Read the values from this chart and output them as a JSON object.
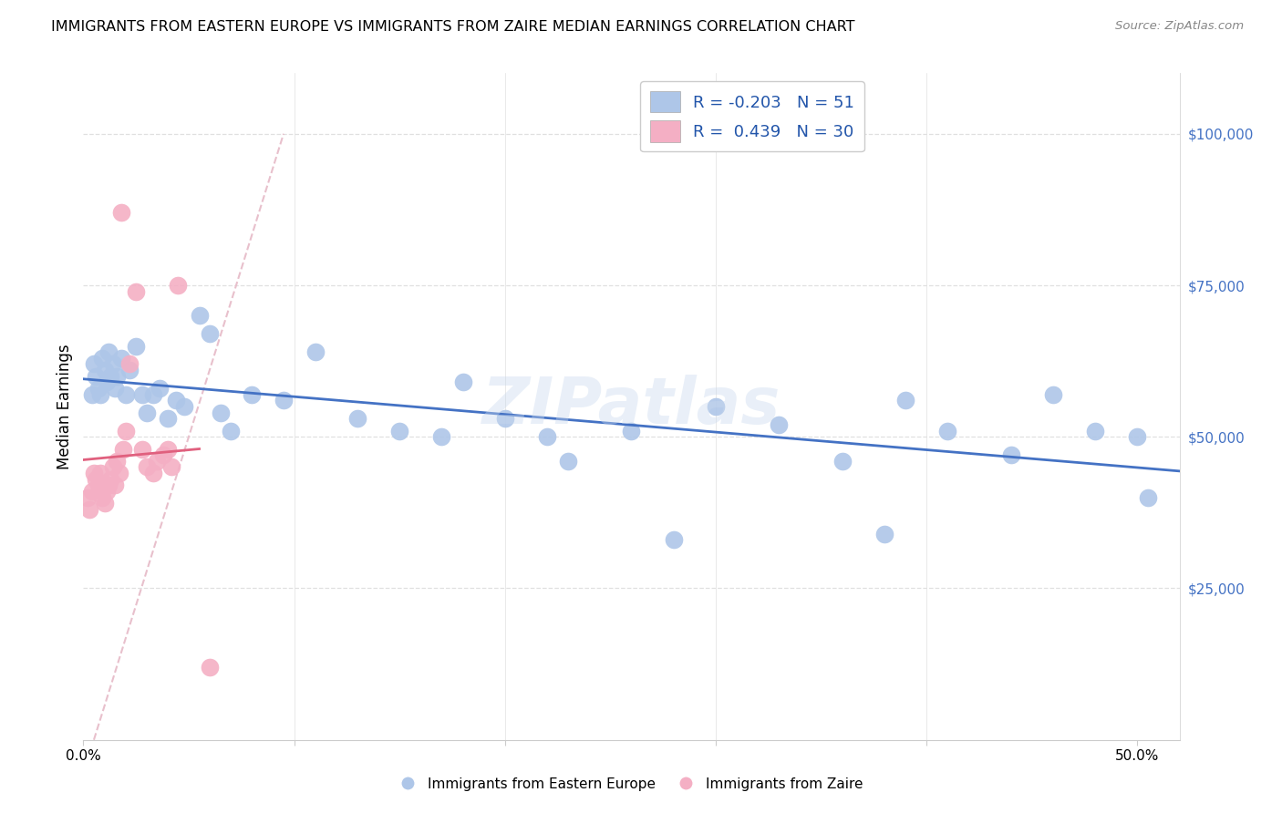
{
  "title": "IMMIGRANTS FROM EASTERN EUROPE VS IMMIGRANTS FROM ZAIRE MEDIAN EARNINGS CORRELATION CHART",
  "source": "Source: ZipAtlas.com",
  "ylabel": "Median Earnings",
  "legend_blue_r": "-0.203",
  "legend_blue_n": "51",
  "legend_pink_r": "0.439",
  "legend_pink_n": "30",
  "watermark": "ZIPatlas",
  "blue_color": "#aec6e8",
  "blue_line_color": "#4472c4",
  "pink_color": "#f4afc4",
  "pink_line_color": "#e0607e",
  "diag_line_color": "#e8b8c8",
  "blue_scatter_x": [
    0.004,
    0.005,
    0.006,
    0.007,
    0.008,
    0.009,
    0.01,
    0.011,
    0.012,
    0.013,
    0.014,
    0.015,
    0.016,
    0.018,
    0.02,
    0.022,
    0.025,
    0.028,
    0.03,
    0.033,
    0.036,
    0.04,
    0.044,
    0.048,
    0.055,
    0.06,
    0.065,
    0.07,
    0.08,
    0.095,
    0.11,
    0.13,
    0.15,
    0.18,
    0.2,
    0.23,
    0.26,
    0.3,
    0.33,
    0.36,
    0.39,
    0.41,
    0.44,
    0.46,
    0.48,
    0.5,
    0.505,
    0.38,
    0.28,
    0.22,
    0.17
  ],
  "blue_scatter_y": [
    57000,
    62000,
    60000,
    58000,
    57000,
    63000,
    61000,
    59000,
    64000,
    60000,
    62000,
    58000,
    60000,
    63000,
    57000,
    61000,
    65000,
    57000,
    54000,
    57000,
    58000,
    53000,
    56000,
    55000,
    70000,
    67000,
    54000,
    51000,
    57000,
    56000,
    64000,
    53000,
    51000,
    59000,
    53000,
    46000,
    51000,
    55000,
    52000,
    46000,
    56000,
    51000,
    47000,
    57000,
    51000,
    50000,
    40000,
    34000,
    33000,
    50000,
    50000
  ],
  "pink_scatter_x": [
    0.002,
    0.003,
    0.004,
    0.005,
    0.006,
    0.007,
    0.008,
    0.009,
    0.01,
    0.011,
    0.012,
    0.013,
    0.014,
    0.015,
    0.016,
    0.017,
    0.018,
    0.019,
    0.02,
    0.022,
    0.025,
    0.028,
    0.03,
    0.033,
    0.035,
    0.038,
    0.04,
    0.042,
    0.045,
    0.06
  ],
  "pink_scatter_y": [
    40000,
    38000,
    41000,
    44000,
    43000,
    42000,
    44000,
    40000,
    39000,
    41000,
    42000,
    43000,
    45000,
    42000,
    46000,
    44000,
    87000,
    48000,
    51000,
    62000,
    74000,
    48000,
    45000,
    44000,
    46000,
    47000,
    48000,
    45000,
    75000,
    12000
  ],
  "xlim": [
    0.0,
    0.52
  ],
  "ylim": [
    0,
    110000
  ],
  "ytick_vals": [
    25000,
    50000,
    75000,
    100000
  ],
  "ytick_labels": [
    "$25,000",
    "$50,000",
    "$75,000",
    "$100,000"
  ],
  "xtick_vals": [
    0.0,
    0.1,
    0.2,
    0.3,
    0.4,
    0.5
  ],
  "xtick_labels": [
    "0.0%",
    "",
    "",
    "",
    "",
    "50.0%"
  ],
  "grid_color": "#e0e0e0",
  "spine_color": "#cccccc"
}
